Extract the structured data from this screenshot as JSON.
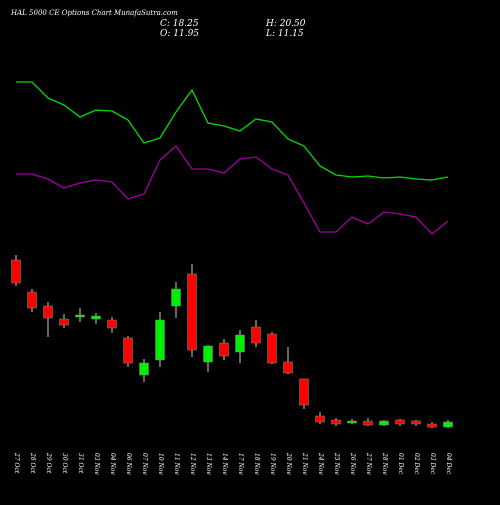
{
  "header": {
    "title": "HAL 5000 CE Options Chart MunafaSutra.com",
    "close_label": "C: 18.25",
    "high_label": "H: 20.50",
    "open_label": "O: 11.95",
    "low_label": "L: 11.15"
  },
  "chart_data": [
    {
      "type": "line",
      "categories": [
        "27 Oct",
        "28 Oct",
        "29 Oct",
        "30 Oct",
        "31 Oct",
        "03 Nov",
        "04 Nov",
        "06 Nov",
        "07 Nov",
        "10 Nov",
        "11 Nov",
        "12 Nov",
        "13 Nov",
        "14 Nov",
        "17 Nov",
        "18 Nov",
        "19 Nov",
        "20 Nov",
        "21 Nov",
        "24 Nov",
        "25 Nov",
        "26 Nov",
        "27 Nov",
        "28 Nov",
        "01 Dec",
        "02 Dec",
        "03 Dec",
        "04 Dec"
      ],
      "series": [
        {
          "color": "#00dd00",
          "values": [
            82,
            82,
            98,
            105,
            117,
            110,
            111,
            120,
            143,
            138,
            112,
            90,
            123,
            126,
            131,
            119,
            122,
            139,
            146,
            166,
            175,
            177,
            176,
            178,
            177,
            179,
            180,
            177
          ]
        },
        {
          "color": "#a000a0",
          "values": [
            174,
            174,
            179,
            188,
            183,
            180,
            182,
            199,
            194,
            160,
            146,
            169,
            169,
            173,
            159,
            157,
            169,
            175,
            203,
            232,
            232,
            217,
            224,
            212,
            214,
            217,
            234,
            221
          ]
        }
      ]
    },
    {
      "type": "candlestick",
      "categories": [
        "27 Oct",
        "28 Oct",
        "29 Oct",
        "30 Oct",
        "31 Oct",
        "03 Nov",
        "04 Nov",
        "06 Nov",
        "07 Nov",
        "10 Nov",
        "11 Nov",
        "12 Nov",
        "13 Nov",
        "14 Nov",
        "17 Nov",
        "18 Nov",
        "19 Nov",
        "20 Nov",
        "21 Nov",
        "24 Nov",
        "25 Nov",
        "26 Nov",
        "27 Nov",
        "28 Nov",
        "01 Dec",
        "02 Dec",
        "03 Dec",
        "04 Dec"
      ],
      "candles": [
        {
          "o": 270,
          "c": 247,
          "h": 275,
          "l": 244
        },
        {
          "o": 238,
          "c": 222,
          "h": 241,
          "l": 218
        },
        {
          "o": 224,
          "c": 212,
          "h": 228,
          "l": 193
        },
        {
          "o": 211,
          "c": 205,
          "h": 216,
          "l": 202
        },
        {
          "o": 214,
          "c": 215,
          "h": 222,
          "l": 208
        },
        {
          "o": 211,
          "c": 214,
          "h": 217,
          "l": 206
        },
        {
          "o": 210,
          "c": 202,
          "h": 213,
          "l": 197
        },
        {
          "o": 192,
          "c": 167,
          "h": 194,
          "l": 163
        },
        {
          "o": 155,
          "c": 167,
          "h": 171,
          "l": 148
        },
        {
          "o": 170,
          "c": 210,
          "h": 218,
          "l": 163
        },
        {
          "o": 224,
          "c": 241,
          "h": 248,
          "l": 212
        },
        {
          "o": 256,
          "c": 180,
          "h": 266,
          "l": 173
        },
        {
          "o": 168,
          "c": 184,
          "h": 185,
          "l": 158
        },
        {
          "o": 187,
          "c": 174,
          "h": 191,
          "l": 170
        },
        {
          "o": 178,
          "c": 195,
          "h": 200,
          "l": 167
        },
        {
          "o": 203,
          "c": 187,
          "h": 210,
          "l": 183
        },
        {
          "o": 196,
          "c": 167,
          "h": 198,
          "l": 166
        },
        {
          "o": 168,
          "c": 157,
          "h": 183,
          "l": 156
        },
        {
          "o": 151,
          "c": 125,
          "h": 151,
          "l": 121
        },
        {
          "o": 114,
          "c": 108,
          "h": 118,
          "l": 106
        },
        {
          "o": 110,
          "c": 106,
          "h": 112,
          "l": 104
        },
        {
          "o": 108,
          "c": 109,
          "h": 111,
          "l": 106
        },
        {
          "o": 109,
          "c": 105,
          "h": 112,
          "l": 104
        },
        {
          "o": 105,
          "c": 109,
          "h": 110,
          "l": 104
        },
        {
          "o": 110,
          "c": 106,
          "h": 111,
          "l": 104
        },
        {
          "o": 109,
          "c": 106,
          "h": 110,
          "l": 104
        },
        {
          "o": 106,
          "c": 103,
          "h": 108,
          "l": 102
        },
        {
          "o": 103,
          "c": 108,
          "h": 110,
          "l": 102
        }
      ]
    }
  ]
}
